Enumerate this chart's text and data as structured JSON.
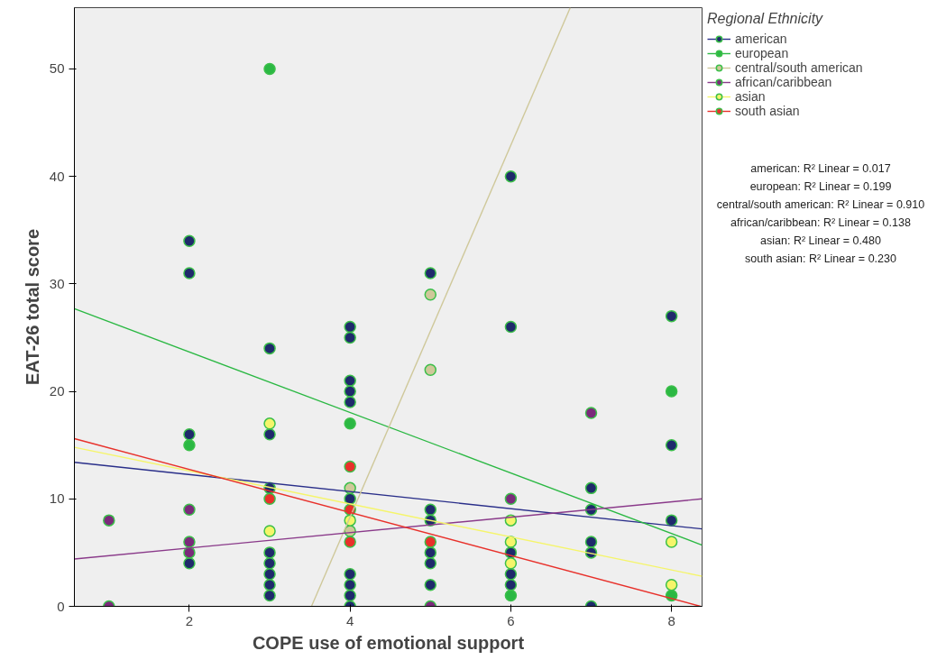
{
  "chart_data": {
    "type": "scatter",
    "xlabel": "COPE use of emotional support",
    "ylabel": "EAT-26 total score",
    "legend_title": "Regional Ethnicity",
    "legend": "right",
    "grid": false,
    "marker": "circle",
    "xlim": [
      0.57,
      8.38
    ],
    "ylim": [
      0,
      55.7
    ],
    "xticks": [
      2,
      4,
      6,
      8
    ],
    "yticks": [
      0,
      10,
      20,
      30,
      40,
      50
    ],
    "series": [
      {
        "name": "american",
        "color": "#1f2a6b",
        "x": [
          2,
          2,
          2,
          2,
          3,
          3,
          3,
          3,
          3,
          3,
          3,
          3,
          4,
          4,
          4,
          4,
          4,
          4,
          4,
          4,
          4,
          4,
          5,
          5,
          5,
          5,
          5,
          5,
          6,
          6,
          6,
          6,
          6,
          7,
          7,
          7,
          7,
          7,
          8,
          8,
          8
        ],
        "values": [
          34,
          31,
          16,
          4,
          24,
          16,
          11,
          5,
          4,
          3,
          2,
          1,
          26,
          25,
          21,
          20,
          19,
          10,
          3,
          2,
          1,
          0,
          31,
          9,
          8,
          5,
          4,
          2,
          40,
          26,
          5,
          3,
          2,
          11,
          9,
          6,
          5,
          0,
          27,
          15,
          8
        ]
      },
      {
        "name": "european",
        "color": "#2bb843",
        "x": [
          3,
          2,
          4,
          6,
          8,
          8
        ],
        "values": [
          50,
          15,
          17,
          1,
          20,
          1
        ]
      },
      {
        "name": "central/south american",
        "color": "#cfc89a",
        "x": [
          5,
          5,
          4,
          4
        ],
        "values": [
          29,
          22,
          11,
          7
        ]
      },
      {
        "name": "african/caribbean",
        "color": "#7b2a7b",
        "x": [
          1,
          1,
          2,
          2,
          2,
          5,
          6,
          7
        ],
        "values": [
          8,
          0,
          9,
          6,
          5,
          0,
          10,
          18
        ]
      },
      {
        "name": "asian",
        "color": "#f5f56a",
        "x": [
          3,
          3,
          4,
          6,
          6,
          6,
          8,
          8
        ],
        "values": [
          17,
          7,
          8,
          8,
          6,
          4,
          6,
          2
        ]
      },
      {
        "name": "south asian",
        "color": "#e8312b",
        "x": [
          3,
          4,
          4,
          4,
          5
        ],
        "values": [
          10,
          13,
          9,
          6,
          6
        ]
      },
      {
        "type": "line",
        "marker": "none",
        "color": "#2a2f8a",
        "x": [
          0.57,
          8.38
        ],
        "values": [
          13.4,
          7.2
        ]
      },
      {
        "type": "line",
        "marker": "none",
        "color": "#2bb843",
        "x": [
          0.57,
          8.38
        ],
        "values": [
          27.7,
          5.7
        ]
      },
      {
        "type": "line",
        "marker": "none",
        "color": "#cfc89a",
        "x": [
          3.52,
          6.74
        ],
        "values": [
          0,
          55.7
        ]
      },
      {
        "type": "line",
        "marker": "none",
        "color": "#8a3a8a",
        "x": [
          0.57,
          8.38
        ],
        "values": [
          4.4,
          10.0
        ]
      },
      {
        "type": "line",
        "marker": "none",
        "color": "#f5f56a",
        "x": [
          0.57,
          8.38
        ],
        "values": [
          14.8,
          2.8
        ]
      },
      {
        "type": "line",
        "marker": "none",
        "color": "#e8312b",
        "x": [
          0.57,
          8.36
        ],
        "values": [
          15.6,
          0
        ]
      }
    ],
    "annotations": [
      "american: R² Linear = 0.017",
      "european: R² Linear = 0.199",
      "central/south american: R² Linear = 0.910",
      "african/caribbean: R² Linear = 0.138",
      "asian: R² Linear = 0.480",
      "south asian: R² Linear = 0.230"
    ]
  }
}
